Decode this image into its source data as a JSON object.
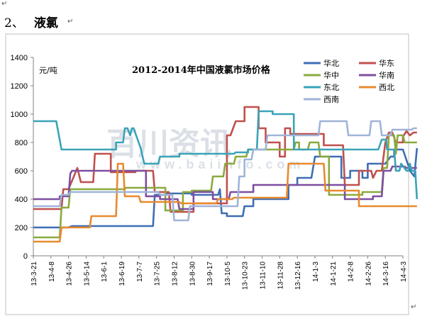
{
  "document": {
    "section_number": "2、",
    "section_title": "液氯",
    "paragraph_mark": "↵"
  },
  "chart_data": {
    "type": "line",
    "title": "2012-2014年中国液氯市场价格",
    "unit_label": "元/吨",
    "xlabel": "",
    "ylabel": "",
    "ylim": [
      0,
      1400
    ],
    "y_ticks": [
      0,
      200,
      400,
      600,
      800,
      1000,
      1200,
      1400
    ],
    "x_categories": [
      "13-3-21",
      "13-4-8",
      "13-4-26",
      "13-5-14",
      "13-6-1",
      "13-6-19",
      "13-7-7",
      "13-7-25",
      "13-8-12",
      "13-8-30",
      "13-9-17",
      "13-10-5",
      "13-10-23",
      "13-11-10",
      "13-11-28",
      "13-12-16",
      "14-1-3",
      "14-1-21",
      "14-2-8",
      "14-2-26",
      "14-3-16",
      "14-4-3"
    ],
    "grid": false,
    "legend_position": "top-right",
    "watermark": "百川资讯",
    "watermark_url": "www.baiinfo.com",
    "series": [
      {
        "name": "华北",
        "color": "#3e6eb3",
        "points": [
          [
            0,
            200
          ],
          [
            2,
            200
          ],
          [
            2.2,
            210
          ],
          [
            6.8,
            210
          ],
          [
            6.9,
            430
          ],
          [
            7.6,
            430
          ],
          [
            7.6,
            440
          ],
          [
            9,
            440
          ],
          [
            9,
            430
          ],
          [
            10.5,
            430
          ],
          [
            10.6,
            470
          ],
          [
            10.7,
            300
          ],
          [
            11,
            300
          ],
          [
            11,
            280
          ],
          [
            11.9,
            280
          ],
          [
            12,
            350
          ],
          [
            12.5,
            350
          ],
          [
            12.5,
            400
          ],
          [
            14.5,
            400
          ],
          [
            14.5,
            500
          ],
          [
            15,
            500
          ],
          [
            15,
            550
          ],
          [
            15.8,
            550
          ],
          [
            16,
            700
          ],
          [
            17.5,
            700
          ],
          [
            17.5,
            550
          ],
          [
            18,
            550
          ],
          [
            18,
            600
          ],
          [
            18.7,
            600
          ],
          [
            18.7,
            550
          ],
          [
            19,
            550
          ],
          [
            19,
            650
          ],
          [
            20,
            650
          ],
          [
            20.3,
            700
          ],
          [
            20.5,
            700
          ],
          [
            20.5,
            750
          ],
          [
            21,
            750
          ],
          [
            21.3,
            640
          ],
          [
            21.4,
            600
          ],
          [
            21.65,
            560
          ],
          [
            21.8,
            760
          ]
        ]
      },
      {
        "name": "华东",
        "color": "#c0504d",
        "points": [
          [
            0,
            330
          ],
          [
            1.6,
            330
          ],
          [
            1.7,
            470
          ],
          [
            2,
            470
          ],
          [
            2.3,
            560
          ],
          [
            2.5,
            620
          ],
          [
            2.7,
            520
          ],
          [
            3.4,
            520
          ],
          [
            3.5,
            720
          ],
          [
            4.4,
            720
          ],
          [
            4.4,
            590
          ],
          [
            5.8,
            590
          ],
          [
            5.8,
            600
          ],
          [
            6.8,
            600
          ],
          [
            6.9,
            450
          ],
          [
            7.7,
            450
          ],
          [
            7.8,
            310
          ],
          [
            9.1,
            310
          ],
          [
            9.1,
            370
          ],
          [
            11,
            370
          ],
          [
            11,
            850
          ],
          [
            11.2,
            850
          ],
          [
            11.5,
            950
          ],
          [
            12,
            950
          ],
          [
            12,
            1050
          ],
          [
            12.8,
            1050
          ],
          [
            12.8,
            900
          ],
          [
            13.2,
            900
          ],
          [
            13.2,
            800
          ],
          [
            14,
            800
          ],
          [
            14,
            700
          ],
          [
            14.3,
            700
          ],
          [
            14.3,
            900
          ],
          [
            14.6,
            900
          ],
          [
            14.6,
            860
          ],
          [
            16.5,
            860
          ],
          [
            16.5,
            780
          ],
          [
            17.6,
            780
          ],
          [
            17.7,
            500
          ],
          [
            18.5,
            500
          ],
          [
            18.5,
            600
          ],
          [
            19.2,
            600
          ],
          [
            19.3,
            550
          ],
          [
            19.5,
            600
          ],
          [
            19.8,
            600
          ],
          [
            20,
            800
          ],
          [
            20.2,
            870
          ],
          [
            20.4,
            870
          ],
          [
            20.6,
            800
          ],
          [
            21,
            800
          ],
          [
            21,
            840
          ],
          [
            21.2,
            880
          ],
          [
            21.4,
            850
          ],
          [
            21.6,
            870
          ],
          [
            21.8,
            870
          ]
        ]
      },
      {
        "name": "华中",
        "color": "#8aaa3e",
        "points": [
          [
            0,
            130
          ],
          [
            1.5,
            130
          ],
          [
            1.6,
            340
          ],
          [
            2,
            340
          ],
          [
            2.1,
            470
          ],
          [
            5.2,
            470
          ],
          [
            5.2,
            480
          ],
          [
            7.5,
            480
          ],
          [
            7.5,
            320
          ],
          [
            8.5,
            320
          ],
          [
            8.5,
            450
          ],
          [
            9,
            450
          ],
          [
            9,
            460
          ],
          [
            10.1,
            460
          ],
          [
            10.2,
            560
          ],
          [
            10.8,
            560
          ],
          [
            10.9,
            650
          ],
          [
            11.4,
            650
          ],
          [
            11.5,
            700
          ],
          [
            12.1,
            700
          ],
          [
            12.2,
            750
          ],
          [
            14.8,
            750
          ],
          [
            14.9,
            800
          ],
          [
            15.1,
            800
          ],
          [
            15.1,
            750
          ],
          [
            15.6,
            750
          ],
          [
            15.7,
            800
          ],
          [
            16.2,
            800
          ],
          [
            16.3,
            700
          ],
          [
            16.8,
            700
          ],
          [
            16.8,
            430
          ],
          [
            18.7,
            430
          ],
          [
            18.7,
            450
          ],
          [
            19.8,
            450
          ],
          [
            19.9,
            620
          ],
          [
            20.1,
            620
          ],
          [
            20.2,
            850
          ],
          [
            20.5,
            850
          ],
          [
            20.6,
            720
          ],
          [
            20.7,
            850
          ],
          [
            21,
            850
          ],
          [
            21.1,
            800
          ],
          [
            21.8,
            800
          ]
        ]
      },
      {
        "name": "华南",
        "color": "#7e4fa0",
        "points": [
          [
            0,
            400
          ],
          [
            1.5,
            400
          ],
          [
            1.5,
            420
          ],
          [
            2,
            420
          ],
          [
            2.1,
            580
          ],
          [
            2.2,
            600
          ],
          [
            6.4,
            600
          ],
          [
            6.4,
            420
          ],
          [
            7.2,
            420
          ],
          [
            7.2,
            400
          ],
          [
            8.2,
            400
          ],
          [
            8.3,
            330
          ],
          [
            9.1,
            330
          ],
          [
            9.1,
            450
          ],
          [
            10.2,
            450
          ],
          [
            10.2,
            400
          ],
          [
            11.1,
            400
          ],
          [
            11.2,
            450
          ],
          [
            12.5,
            450
          ],
          [
            12.5,
            500
          ],
          [
            15,
            500
          ],
          [
            15,
            500
          ],
          [
            17.7,
            500
          ],
          [
            17.7,
            400
          ],
          [
            19.3,
            400
          ],
          [
            19.3,
            420
          ],
          [
            19.8,
            420
          ],
          [
            19.9,
            600
          ],
          [
            20.3,
            600
          ],
          [
            20.4,
            630
          ],
          [
            21.1,
            630
          ],
          [
            21.2,
            620
          ],
          [
            21.8,
            620
          ]
        ]
      },
      {
        "name": "东北",
        "color": "#3aa3b8",
        "points": [
          [
            0,
            950
          ],
          [
            1.3,
            950
          ],
          [
            1.6,
            750
          ],
          [
            4.7,
            750
          ],
          [
            4.7,
            800
          ],
          [
            5.1,
            800
          ],
          [
            5.2,
            900
          ],
          [
            5.35,
            900
          ],
          [
            5.5,
            850
          ],
          [
            5.6,
            900
          ],
          [
            5.7,
            900
          ],
          [
            6.1,
            760
          ],
          [
            6.3,
            650
          ],
          [
            7.1,
            650
          ],
          [
            7.2,
            700
          ],
          [
            8.3,
            700
          ],
          [
            8.3,
            720
          ],
          [
            11.4,
            720
          ],
          [
            11.5,
            730
          ],
          [
            12.2,
            730
          ],
          [
            12.2,
            750
          ],
          [
            12.7,
            750
          ],
          [
            12.8,
            1020
          ],
          [
            13.6,
            1020
          ],
          [
            13.6,
            1000
          ],
          [
            14.8,
            1000
          ],
          [
            14.8,
            750
          ],
          [
            16.6,
            750
          ],
          [
            16.6,
            750
          ],
          [
            19.6,
            750
          ],
          [
            19.8,
            820
          ],
          [
            20.05,
            820
          ],
          [
            20.1,
            750
          ],
          [
            20.5,
            750
          ],
          [
            20.6,
            600
          ],
          [
            20.8,
            600
          ],
          [
            20.9,
            650
          ],
          [
            21.2,
            600
          ],
          [
            21.3,
            600
          ],
          [
            21.4,
            650
          ],
          [
            21.5,
            600
          ],
          [
            21.7,
            600
          ],
          [
            21.8,
            400
          ]
        ]
      },
      {
        "name": "西北",
        "color": "#e88a2e",
        "points": [
          [
            0,
            100
          ],
          [
            1.5,
            100
          ],
          [
            1.6,
            200
          ],
          [
            3.2,
            200
          ],
          [
            3.3,
            280
          ],
          [
            4.7,
            280
          ],
          [
            4.8,
            650
          ],
          [
            5.1,
            650
          ],
          [
            5.2,
            420
          ],
          [
            6,
            420
          ],
          [
            6.1,
            380
          ],
          [
            8.3,
            380
          ],
          [
            8.4,
            370
          ],
          [
            10.4,
            370
          ],
          [
            10.5,
            400
          ],
          [
            11.3,
            400
          ],
          [
            11.4,
            410
          ],
          [
            14.4,
            410
          ],
          [
            14.5,
            650
          ],
          [
            15.8,
            650
          ],
          [
            15.8,
            650
          ],
          [
            16.5,
            650
          ],
          [
            16.6,
            460
          ],
          [
            18.5,
            460
          ],
          [
            18.5,
            350
          ],
          [
            19.7,
            350
          ],
          [
            19.8,
            350
          ],
          [
            21.8,
            350
          ]
        ]
      },
      {
        "name": "西南",
        "color": "#9fb4d9",
        "points": [
          [
            0,
            350
          ],
          [
            1.5,
            350
          ],
          [
            1.6,
            430
          ],
          [
            2,
            430
          ],
          [
            2.1,
            450
          ],
          [
            7.1,
            450
          ],
          [
            7.2,
            430
          ],
          [
            7.9,
            430
          ],
          [
            8,
            250
          ],
          [
            8.8,
            250
          ],
          [
            8.9,
            350
          ],
          [
            11.6,
            350
          ],
          [
            11.7,
            560
          ],
          [
            12,
            560
          ],
          [
            12,
            680
          ],
          [
            12.4,
            680
          ],
          [
            12.5,
            750
          ],
          [
            13.2,
            750
          ],
          [
            13.3,
            850
          ],
          [
            15.4,
            850
          ],
          [
            15.5,
            850
          ],
          [
            16.2,
            850
          ],
          [
            16.3,
            950
          ],
          [
            17.8,
            950
          ],
          [
            17.9,
            850
          ],
          [
            19.1,
            850
          ],
          [
            19.2,
            950
          ],
          [
            19.7,
            950
          ],
          [
            19.8,
            850
          ],
          [
            20.3,
            850
          ],
          [
            20.4,
            890
          ],
          [
            21.5,
            890
          ],
          [
            21.6,
            900
          ],
          [
            21.8,
            900
          ]
        ]
      }
    ]
  }
}
